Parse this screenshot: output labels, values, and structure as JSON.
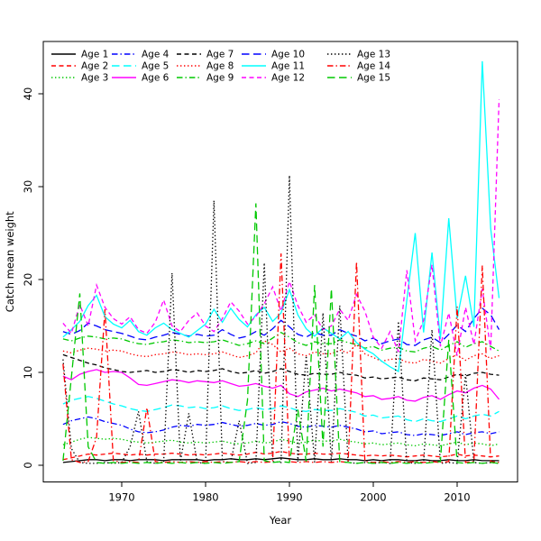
{
  "chart_data": {
    "type": "line",
    "title": "",
    "xlabel": "Year",
    "ylabel": "Catch mean weight",
    "x_ticks": [
      1970,
      1980,
      1990,
      2000,
      2010
    ],
    "y_ticks": [
      0,
      10,
      20,
      30,
      40
    ],
    "xlim": [
      1960.9,
      2017.1
    ],
    "ylim": [
      -2.2,
      45.6
    ],
    "grid": false,
    "legend_position": "top-left",
    "x": [
      1963,
      1964,
      1965,
      1966,
      1967,
      1968,
      1969,
      1970,
      1971,
      1972,
      1973,
      1974,
      1975,
      1976,
      1977,
      1978,
      1979,
      1980,
      1981,
      1982,
      1983,
      1984,
      1985,
      1986,
      1987,
      1988,
      1989,
      1990,
      1991,
      1992,
      1993,
      1994,
      1995,
      1996,
      1997,
      1998,
      1999,
      2000,
      2001,
      2002,
      2003,
      2004,
      2005,
      2006,
      2007,
      2008,
      2009,
      2010,
      2011,
      2012,
      2013,
      2014,
      2015
    ],
    "series": [
      {
        "name": "Age 1",
        "color": "#000000",
        "linestyle": "solid",
        "values": [
          0.3,
          0.4,
          0.5,
          0.6,
          0.6,
          0.5,
          0.6,
          0.6,
          0.5,
          0.6,
          0.6,
          0.6,
          0.5,
          0.6,
          0.6,
          0.6,
          0.6,
          0.5,
          0.6,
          0.6,
          0.7,
          0.6,
          0.6,
          0.7,
          0.6,
          0.7,
          0.8,
          0.7,
          0.6,
          0.6,
          0.7,
          0.6,
          0.6,
          0.7,
          0.6,
          0.6,
          0.5,
          0.6,
          0.5,
          0.6,
          0.6,
          0.5,
          0.5,
          0.6,
          0.5,
          0.5,
          0.6,
          0.5,
          0.5,
          0.6,
          0.5,
          0.5,
          0.5
        ]
      },
      {
        "name": "Age 2",
        "color": "#ff0000",
        "linestyle": "dashed",
        "values": [
          0.6,
          0.8,
          1.0,
          1.2,
          1.1,
          1.2,
          1.3,
          1.2,
          1.1,
          1.2,
          1.1,
          1.2,
          1.2,
          1.3,
          1.2,
          1.1,
          1.2,
          1.1,
          1.2,
          1.3,
          1.2,
          1.1,
          1.2,
          1.4,
          1.2,
          1.3,
          1.5,
          1.3,
          1.2,
          1.2,
          1.3,
          1.2,
          1.2,
          1.3,
          1.2,
          1.1,
          1.0,
          1.1,
          1.0,
          1.1,
          1.0,
          0.9,
          1.0,
          1.1,
          1.0,
          0.9,
          1.0,
          1.2,
          1.0,
          1.1,
          1.0,
          0.9,
          1.0
        ]
      },
      {
        "name": "Age 3",
        "color": "#00c800",
        "linestyle": "dotted",
        "values": [
          2.2,
          2.5,
          2.8,
          3.0,
          2.9,
          2.8,
          2.9,
          2.8,
          2.6,
          2.5,
          2.4,
          2.5,
          2.6,
          2.7,
          2.5,
          2.4,
          2.5,
          2.4,
          2.5,
          2.6,
          2.4,
          2.3,
          2.4,
          2.6,
          2.4,
          2.5,
          2.8,
          2.6,
          2.4,
          2.5,
          2.7,
          2.6,
          2.6,
          2.8,
          2.6,
          2.5,
          2.3,
          2.4,
          2.2,
          2.3,
          2.4,
          2.2,
          2.1,
          2.3,
          2.2,
          2.1,
          2.3,
          2.5,
          2.2,
          2.4,
          2.3,
          2.1,
          2.3
        ]
      },
      {
        "name": "Age 4",
        "color": "#0000ff",
        "linestyle": "dashdot",
        "values": [
          4.4,
          4.8,
          5.0,
          5.2,
          5.0,
          4.7,
          4.5,
          4.3,
          3.9,
          3.6,
          3.5,
          3.6,
          3.8,
          4.1,
          4.3,
          4.2,
          4.4,
          4.3,
          4.4,
          4.6,
          4.4,
          4.2,
          4.3,
          4.5,
          4.3,
          4.4,
          4.7,
          4.5,
          4.2,
          4.1,
          4.3,
          4.2,
          4.1,
          4.3,
          4.1,
          3.9,
          3.6,
          3.7,
          3.4,
          3.5,
          3.6,
          3.3,
          3.2,
          3.4,
          3.3,
          3.2,
          3.4,
          3.6,
          3.3,
          3.5,
          3.6,
          3.4,
          3.6
        ]
      },
      {
        "name": "Age 5",
        "color": "#00ffff",
        "linestyle": "longdash",
        "values": [
          6.6,
          7.0,
          7.2,
          7.4,
          7.2,
          6.9,
          6.6,
          6.4,
          6.1,
          5.9,
          5.8,
          6.0,
          6.2,
          6.5,
          6.4,
          6.2,
          6.3,
          6.1,
          6.2,
          6.4,
          6.1,
          5.9,
          6.0,
          6.2,
          6.0,
          6.1,
          6.4,
          6.2,
          5.9,
          5.8,
          6.0,
          5.9,
          5.9,
          6.1,
          5.9,
          5.7,
          5.3,
          5.4,
          5.1,
          5.2,
          5.3,
          4.9,
          4.7,
          5.0,
          4.8,
          4.7,
          5.0,
          5.3,
          5.0,
          5.3,
          5.5,
          5.3,
          5.8
        ]
      },
      {
        "name": "Age 6",
        "color": "#ff00ff",
        "linestyle": "solid",
        "values": [
          9.6,
          9.2,
          9.8,
          10.1,
          10.3,
          10.0,
          10.1,
          10.0,
          9.4,
          8.7,
          8.6,
          8.8,
          9.0,
          9.2,
          9.1,
          8.9,
          9.1,
          9.0,
          8.9,
          9.1,
          8.8,
          8.5,
          8.6,
          8.8,
          8.5,
          8.3,
          8.6,
          7.7,
          7.4,
          7.9,
          8.1,
          8.3,
          8.0,
          8.2,
          8.0,
          7.8,
          7.4,
          7.5,
          7.1,
          7.2,
          7.4,
          7.0,
          6.9,
          7.3,
          7.5,
          7.1,
          7.6,
          8.0,
          7.8,
          8.3,
          8.6,
          8.2,
          7.1
        ]
      },
      {
        "name": "Age 7",
        "color": "#000000",
        "linestyle": "dashed",
        "values": [
          11.9,
          11.6,
          11.3,
          11.0,
          10.8,
          10.5,
          10.3,
          10.1,
          10.0,
          10.1,
          10.2,
          10.0,
          10.1,
          10.3,
          10.2,
          10.0,
          10.2,
          10.1,
          10.2,
          10.4,
          10.1,
          9.9,
          10.0,
          10.2,
          9.9,
          10.1,
          10.4,
          10.1,
          9.8,
          9.7,
          9.9,
          9.8,
          9.8,
          10.0,
          9.8,
          9.7,
          9.4,
          9.5,
          9.3,
          9.4,
          9.5,
          9.2,
          9.1,
          9.4,
          9.3,
          9.2,
          9.5,
          9.8,
          9.6,
          9.9,
          10.0,
          9.8,
          9.7
        ]
      },
      {
        "name": "Age 8",
        "color": "#ff0000",
        "linestyle": "dotted",
        "values": [
          12.3,
          12.1,
          12.4,
          12.6,
          12.5,
          12.3,
          12.4,
          12.3,
          12.0,
          11.8,
          11.7,
          11.9,
          12.0,
          12.2,
          12.1,
          11.9,
          12.0,
          11.9,
          12.0,
          12.2,
          11.9,
          11.6,
          11.8,
          12.1,
          13.4,
          13.0,
          12.2,
          12.6,
          12.0,
          11.8,
          12.2,
          12.0,
          12.0,
          12.4,
          12.1,
          13.0,
          12.0,
          11.6,
          11.2,
          11.4,
          11.5,
          11.1,
          11.0,
          11.4,
          11.2,
          11.0,
          11.5,
          11.9,
          11.3,
          11.8,
          12.0,
          11.5,
          11.8
        ]
      },
      {
        "name": "Age 9",
        "color": "#00c800",
        "linestyle": "dashdot",
        "values": [
          13.6,
          13.4,
          13.7,
          13.9,
          13.8,
          13.6,
          13.7,
          13.6,
          13.3,
          13.1,
          13.0,
          13.2,
          13.3,
          13.5,
          13.4,
          13.2,
          13.3,
          13.2,
          13.3,
          13.5,
          13.2,
          12.9,
          13.1,
          13.4,
          13.1,
          13.7,
          14.3,
          13.8,
          13.2,
          12.9,
          13.3,
          13.1,
          13.1,
          13.5,
          13.2,
          13.0,
          12.6,
          12.8,
          12.4,
          12.6,
          12.7,
          12.3,
          12.2,
          12.6,
          12.8,
          12.4,
          12.9,
          13.3,
          12.7,
          13.1,
          13.3,
          12.8,
          12.3
        ]
      },
      {
        "name": "Age 10",
        "color": "#0000ff",
        "linestyle": "longdash",
        "values": [
          14.4,
          14.1,
          14.5,
          15.3,
          15.0,
          14.6,
          14.4,
          14.2,
          13.9,
          13.6,
          13.5,
          13.8,
          14.0,
          14.3,
          14.1,
          13.9,
          14.1,
          13.9,
          14.0,
          14.6,
          14.1,
          13.7,
          13.9,
          14.4,
          14.0,
          14.7,
          15.6,
          14.9,
          14.1,
          13.8,
          14.3,
          14.0,
          14.0,
          14.6,
          14.2,
          13.9,
          13.4,
          13.7,
          13.1,
          13.4,
          13.6,
          13.0,
          12.9,
          13.5,
          13.8,
          13.2,
          14.1,
          15.1,
          14.4,
          15.8,
          16.9,
          16.2,
          14.6
        ]
      },
      {
        "name": "Age 11",
        "color": "#00ffff",
        "linestyle": "solid",
        "values": [
          13.8,
          14.6,
          15.5,
          17.2,
          18.3,
          16.0,
          15.2,
          14.8,
          15.6,
          14.4,
          14.0,
          14.8,
          15.3,
          14.6,
          14.2,
          13.8,
          14.5,
          15.2,
          16.8,
          15.4,
          16.9,
          15.7,
          14.9,
          16.2,
          17.0,
          15.5,
          16.4,
          18.9,
          16.2,
          14.7,
          13.9,
          14.8,
          14.2,
          13.6,
          14.4,
          13.2,
          12.5,
          12.0,
          11.2,
          10.6,
          10.1,
          17.8,
          25.0,
          14.3,
          22.9,
          13.6,
          26.6,
          15.8,
          20.4,
          14.9,
          43.5,
          25.5,
          18.0
        ]
      },
      {
        "name": "Age 12",
        "color": "#ff00ff",
        "linestyle": "dashed",
        "values": [
          15.3,
          14.2,
          17.3,
          15.0,
          19.4,
          17.0,
          15.8,
          15.2,
          16.0,
          14.6,
          14.2,
          15.4,
          17.8,
          15.0,
          14.4,
          15.6,
          16.4,
          15.0,
          14.4,
          15.8,
          17.6,
          16.6,
          15.2,
          16.0,
          17.4,
          19.2,
          16.6,
          19.8,
          17.2,
          15.4,
          16.2,
          14.6,
          15.0,
          16.8,
          15.6,
          18.4,
          16.6,
          13.8,
          12.6,
          14.4,
          12.2,
          21.0,
          13.4,
          15.6,
          21.6,
          12.8,
          16.4,
          11.8,
          17.0,
          13.0,
          19.0,
          12.4,
          39.4
        ]
      },
      {
        "name": "Age 13",
        "color": "#000000",
        "linestyle": "dotted",
        "values": [
          11.4,
          1.8,
          0.3,
          0.2,
          0.2,
          0.3,
          0.2,
          0.3,
          2.0,
          5.8,
          0.4,
          0.2,
          0.3,
          20.7,
          0.4,
          5.6,
          0.3,
          0.2,
          28.5,
          0.4,
          0.3,
          4.8,
          0.2,
          0.3,
          21.8,
          0.4,
          0.3,
          31.2,
          0.4,
          11.8,
          0.3,
          16.4,
          0.3,
          17.2,
          0.3,
          0.2,
          0.3,
          0.2,
          0.3,
          0.2,
          15.5,
          0.3,
          0.2,
          0.3,
          14.6,
          0.2,
          0.3,
          0.2,
          9.8,
          0.3,
          0.2,
          0.3,
          0.2
        ]
      },
      {
        "name": "Age 14",
        "color": "#ff0000",
        "linestyle": "dashdot",
        "values": [
          10.9,
          0.6,
          0.3,
          0.4,
          3.0,
          16.8,
          0.5,
          0.3,
          0.4,
          0.3,
          6.2,
          0.4,
          0.3,
          0.4,
          0.3,
          0.4,
          0.3,
          0.4,
          0.3,
          0.4,
          0.3,
          0.4,
          0.3,
          0.4,
          0.3,
          0.4,
          22.8,
          0.4,
          0.3,
          0.4,
          0.3,
          0.4,
          0.3,
          0.4,
          0.3,
          21.9,
          0.4,
          0.3,
          0.4,
          0.3,
          0.4,
          0.3,
          0.4,
          0.3,
          0.4,
          0.3,
          0.4,
          17.1,
          0.3,
          0.4,
          21.5,
          0.4,
          0.3
        ]
      },
      {
        "name": "Age 15",
        "color": "#00c800",
        "linestyle": "longdash",
        "values": [
          0.5,
          9.5,
          18.5,
          2.0,
          0.3,
          0.2,
          0.3,
          0.2,
          0.3,
          0.2,
          0.3,
          0.2,
          0.3,
          0.2,
          0.3,
          0.2,
          0.3,
          0.2,
          0.3,
          0.2,
          0.3,
          0.4,
          7.0,
          28.2,
          0.5,
          0.3,
          0.4,
          0.3,
          6.0,
          0.4,
          19.4,
          2.0,
          19.0,
          0.4,
          0.3,
          0.2,
          0.3,
          0.2,
          0.3,
          0.2,
          0.3,
          0.2,
          0.3,
          0.2,
          0.3,
          0.4,
          13.5,
          0.3,
          0.2,
          0.3,
          0.2,
          0.3,
          0.2
        ]
      }
    ]
  }
}
